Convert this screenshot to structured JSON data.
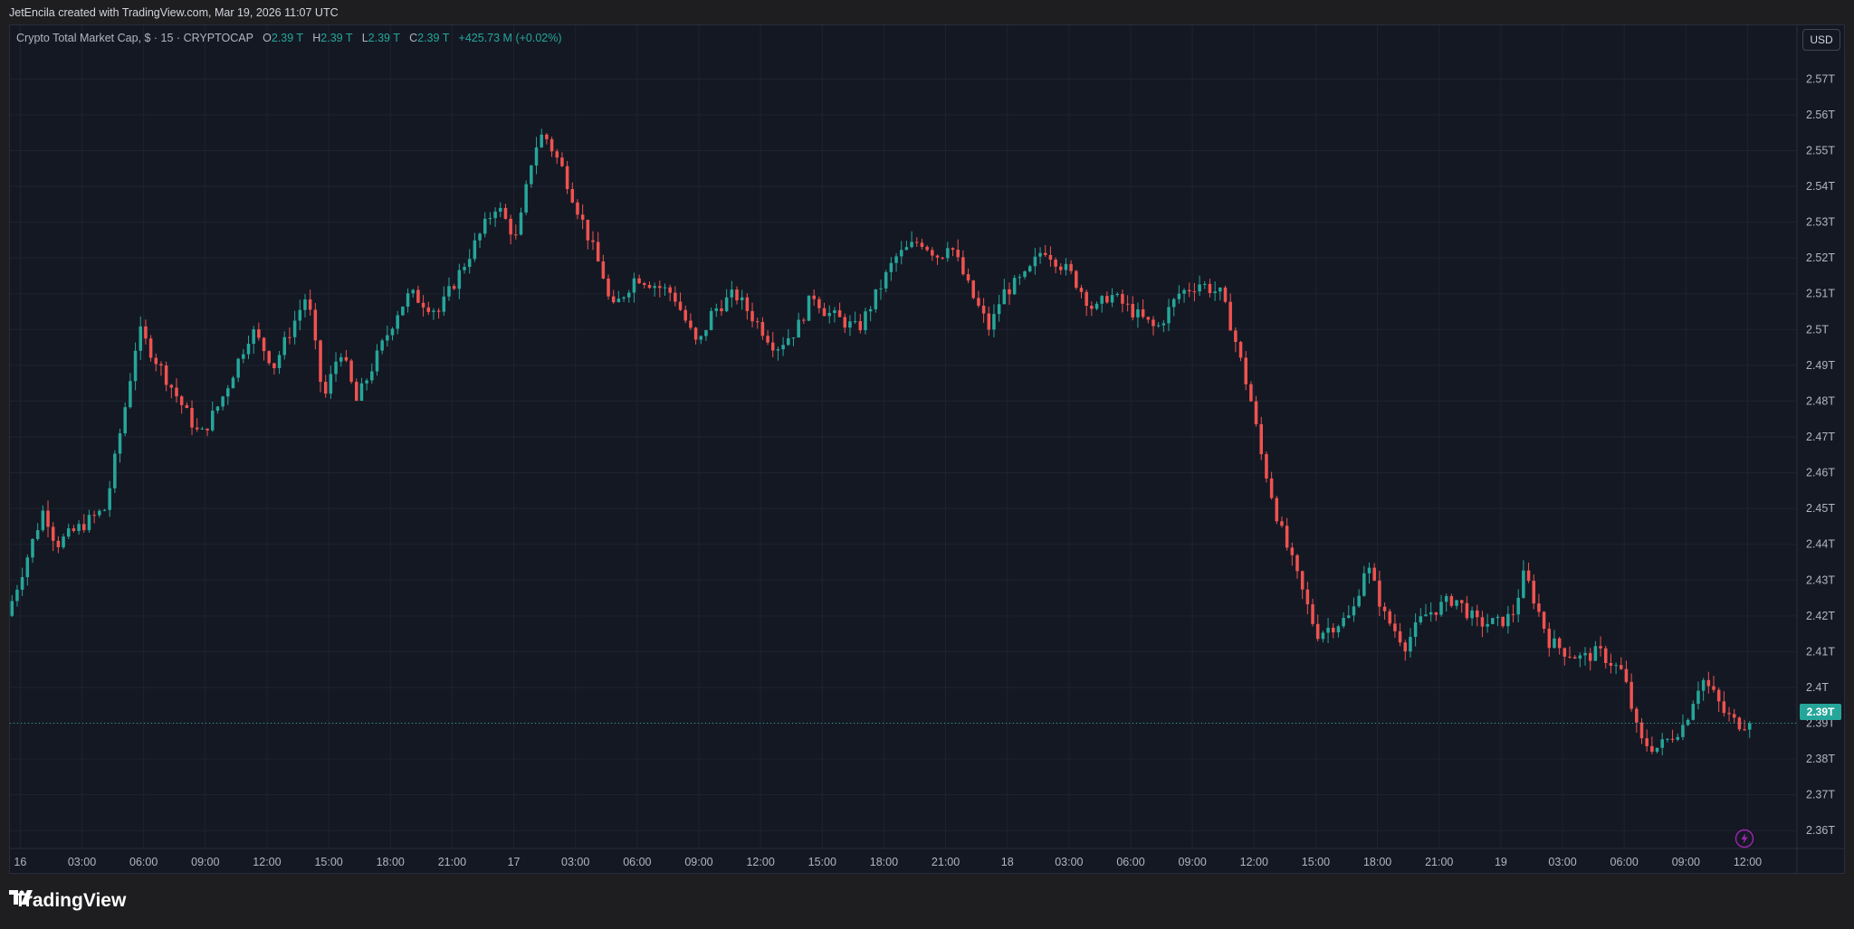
{
  "attribution": "JetEncila created with TradingView.com, Mar 19, 2026 11:07 UTC",
  "legend": {
    "symbol": "Crypto Total Market Cap, $ · 15 · CRYPTOCAP",
    "o_label": "O",
    "o_value": "2.39 T",
    "h_label": "H",
    "h_value": "2.39 T",
    "l_label": "L",
    "l_value": "2.39 T",
    "c_label": "C",
    "c_value": "2.39 T",
    "change": "+425.73 M (+0.02%)"
  },
  "currency_button": "USD",
  "last_price_label": "2.39T",
  "logo_text": "TradingView",
  "colors": {
    "up": "#26a69a",
    "down": "#ef5350",
    "background": "#141823",
    "grid": "#1f2330",
    "text": "#b2b5be"
  },
  "chart_data": {
    "type": "candlestick",
    "title": "Crypto Total Market Cap, $ · 15 · CRYPTOCAP",
    "ylabel": "",
    "xlabel": "",
    "y_unit": "T",
    "ylim": [
      2.355,
      2.585
    ],
    "grid": true,
    "y_ticks": [
      2.36,
      2.37,
      2.38,
      2.39,
      2.4,
      2.41,
      2.42,
      2.43,
      2.44,
      2.45,
      2.46,
      2.47,
      2.48,
      2.49,
      2.5,
      2.51,
      2.52,
      2.53,
      2.54,
      2.55,
      2.56,
      2.57
    ],
    "y_tick_labels": [
      "2.36T",
      "2.37T",
      "2.38T",
      "2.39T",
      "2.4T",
      "2.41T",
      "2.42T",
      "2.43T",
      "2.44T",
      "2.45T",
      "2.46T",
      "2.47T",
      "2.48T",
      "2.49T",
      "2.5T",
      "2.51T",
      "2.52T",
      "2.53T",
      "2.54T",
      "2.55T",
      "2.56T",
      "2.57T"
    ],
    "x_tick_labels": [
      "16",
      "03:00",
      "06:00",
      "09:00",
      "12:00",
      "15:00",
      "18:00",
      "21:00",
      "17",
      "03:00",
      "06:00",
      "09:00",
      "12:00",
      "15:00",
      "18:00",
      "21:00",
      "18",
      "03:00",
      "06:00",
      "09:00",
      "12:00",
      "15:00",
      "18:00",
      "21:00",
      "19",
      "03:00",
      "06:00",
      "09:00",
      "12:00"
    ],
    "x_tick_hours": [
      24,
      27,
      30,
      33,
      36,
      39,
      42,
      45,
      48,
      51,
      54,
      57,
      60,
      63,
      66,
      69,
      72,
      75,
      78,
      81,
      84,
      87,
      90,
      93,
      96,
      99,
      102,
      105,
      108
    ],
    "x_range_hours": [
      23.5,
      110.4
    ],
    "interval_minutes": 15,
    "last_price": 2.39,
    "price_path_hours": [
      23.6,
      25.4,
      26.0,
      28.4,
      29.4,
      30.0,
      31.0,
      33.0,
      34.0,
      35.5,
      36.6,
      38.2,
      39.0,
      39.8,
      40.6,
      42.6,
      43.2,
      44.6,
      46.0,
      47.4,
      48.4,
      49.2,
      49.7,
      50.6,
      51.6,
      52.6,
      53.0,
      54.2,
      56.0,
      57.2,
      57.9,
      59.0,
      61.0,
      62.0,
      62.8,
      63.4,
      65.0,
      66.8,
      68.0,
      69.0,
      69.4,
      70.5,
      71.4,
      72.0,
      73.2,
      74.0,
      75.4,
      76.5,
      77.2,
      79.5,
      80.6,
      81.6,
      82.6,
      83.2,
      84.1,
      84.6,
      85.5,
      86.7,
      87.3,
      89.0,
      89.7,
      90.6,
      91.6,
      92.5,
      94.0,
      95.1,
      96.1,
      96.8,
      97.4,
      98.6,
      99.4,
      100.2,
      101.0,
      102.2,
      103.0,
      103.8,
      104.3,
      105.2,
      105.8,
      106.1,
      106.6,
      107.1,
      107.7,
      108.1
    ],
    "price_path_values": [
      2.42,
      2.45,
      2.44,
      2.45,
      2.48,
      2.5,
      2.49,
      2.47,
      2.48,
      2.5,
      2.49,
      2.51,
      2.48,
      2.495,
      2.48,
      2.505,
      2.51,
      2.505,
      2.52,
      2.535,
      2.525,
      2.55,
      2.555,
      2.545,
      2.53,
      2.515,
      2.505,
      2.515,
      2.51,
      2.495,
      2.505,
      2.51,
      2.495,
      2.5,
      2.51,
      2.505,
      2.5,
      2.52,
      2.525,
      2.52,
      2.525,
      2.51,
      2.5,
      2.51,
      2.515,
      2.523,
      2.515,
      2.505,
      2.51,
      2.5,
      2.51,
      2.513,
      2.51,
      2.5,
      2.48,
      2.465,
      2.445,
      2.425,
      2.415,
      2.42,
      2.435,
      2.42,
      2.412,
      2.42,
      2.425,
      2.418,
      2.418,
      2.42,
      2.432,
      2.413,
      2.41,
      2.408,
      2.41,
      2.404,
      2.385,
      2.383,
      2.385,
      2.39,
      2.4,
      2.402,
      2.398,
      2.393,
      2.39,
      2.39
    ],
    "annotations": []
  }
}
